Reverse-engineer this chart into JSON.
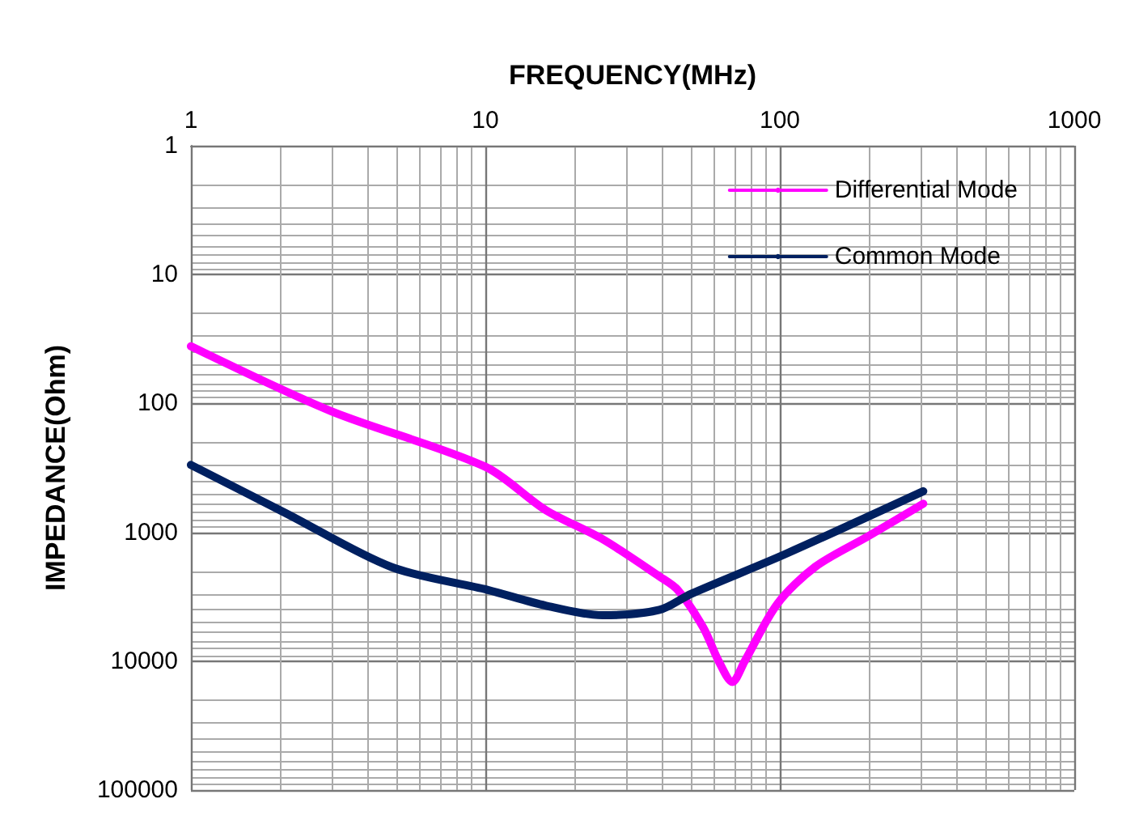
{
  "chart_data": {
    "type": "line",
    "xlabel": "FREQUENCY(MHz)",
    "ylabel": "IMPEDANCE(Ohm)",
    "log": "xy",
    "xlim": [
      1,
      1000
    ],
    "xticks": [
      1,
      10,
      100,
      1000
    ],
    "ylim": [
      100000,
      1
    ],
    "yticks": [
      1,
      10,
      100,
      1000,
      10000,
      100000
    ],
    "grid": true,
    "legend": "top right",
    "marker": "none",
    "line_style": "solid",
    "series": [
      {
        "name": "Differential Mode",
        "color": "#ff00ff",
        "x": [
          1,
          3,
          10,
          16,
          25,
          39,
          45,
          55,
          62,
          69,
          76,
          98,
          132,
          200,
          307
        ],
        "values": [
          36,
          115,
          310,
          670,
          1130,
          2200,
          2800,
          5500,
          10000,
          14500,
          10000,
          3600,
          1850,
          1070,
          600
        ]
      },
      {
        "name": "Common Mode",
        "color": "#002060",
        "x": [
          1,
          2.1,
          4.8,
          10.2,
          16,
          25,
          39,
          50,
          104,
          307
        ],
        "values": [
          300,
          710,
          1860,
          2800,
          3700,
          4400,
          4000,
          3000,
          1480,
          480
        ]
      }
    ]
  }
}
